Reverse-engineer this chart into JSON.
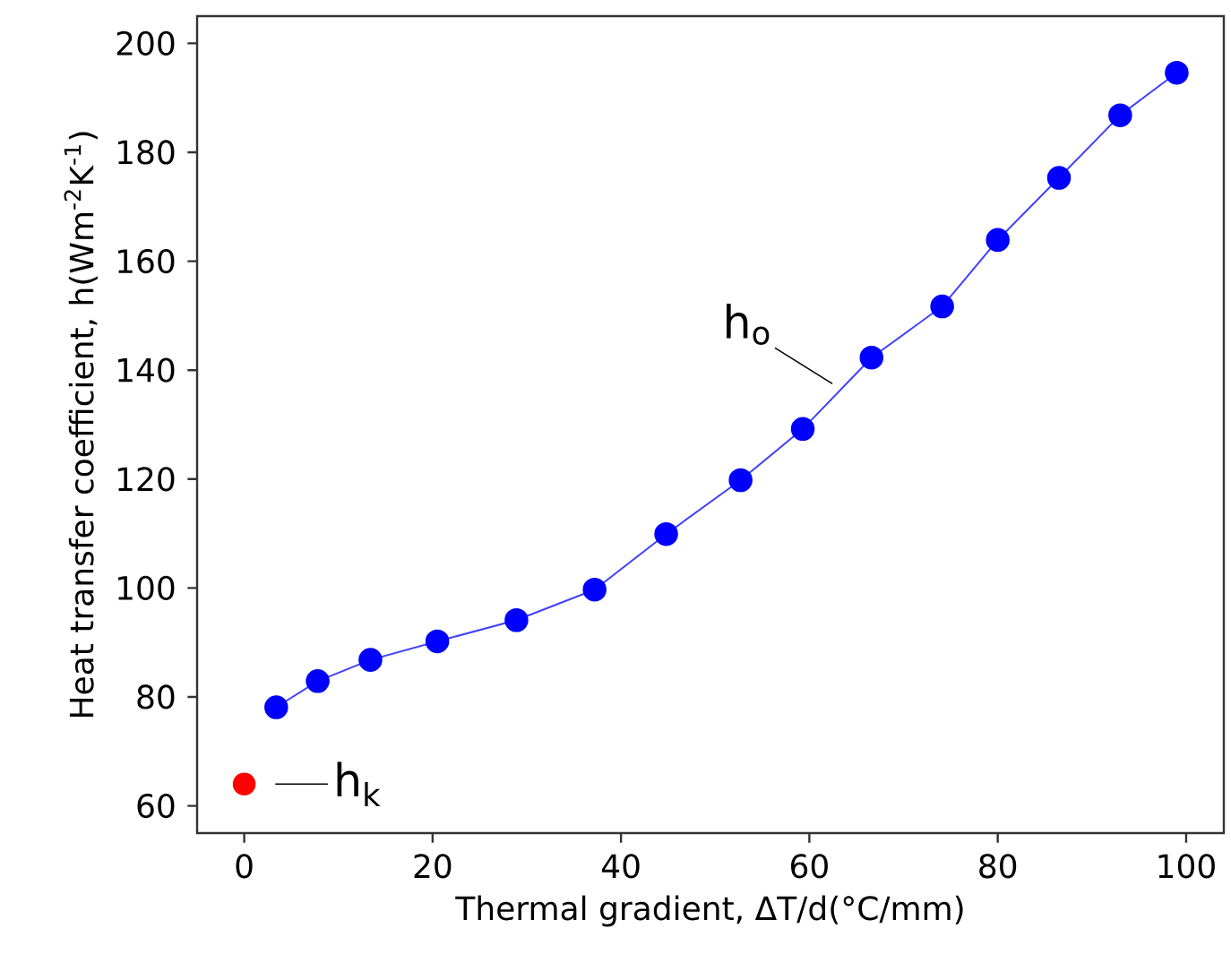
{
  "chart_data": {
    "type": "line",
    "xlabel": "Thermal gradient, ΔT/d(°C/mm)",
    "ylabel": "Heat transfer coefficient, h(Wm$^{-2}$K$^{-1}$)",
    "xlim": [
      -5,
      104
    ],
    "ylim": [
      55,
      205
    ],
    "xticks": [
      0,
      20,
      40,
      60,
      80,
      100
    ],
    "yticks": [
      60,
      80,
      100,
      120,
      140,
      160,
      180,
      200
    ],
    "marker": "circle",
    "grid": false,
    "series": [
      {
        "name": "h$_{k}$",
        "type": "scatter",
        "color": "#ff0000",
        "x": [
          0
        ],
        "values": [
          64
        ]
      },
      {
        "name": "h$_{o}$",
        "color": "#0000ff",
        "x": [
          3.4,
          7.8,
          13.4,
          20.5,
          28.9,
          37.2,
          44.8,
          52.7,
          59.3,
          66.6,
          74.1,
          80.0,
          86.5,
          93.0,
          99.0
        ],
        "values": [
          78.1,
          82.9,
          86.8,
          90.2,
          94.1,
          99.7,
          109.9,
          119.8,
          129.2,
          142.3,
          151.7,
          163.9,
          175.3,
          186.8,
          194.6
        ]
      }
    ]
  }
}
